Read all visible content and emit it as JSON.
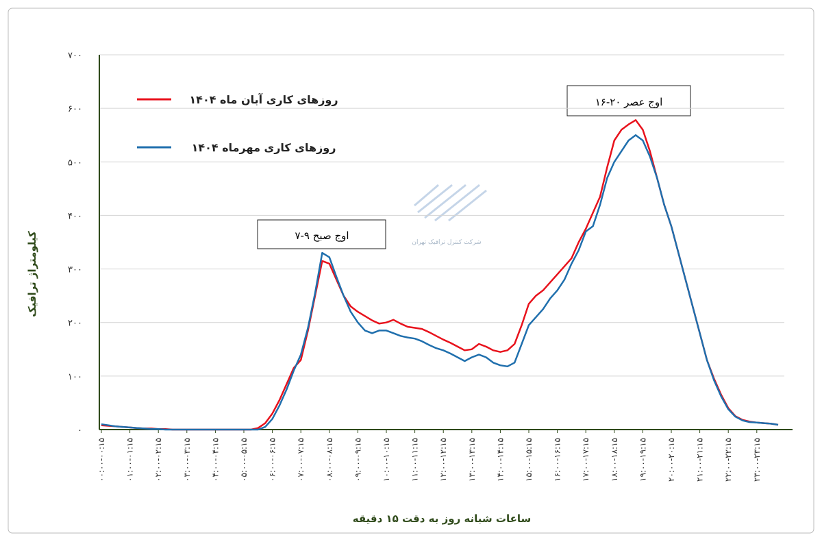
{
  "chart_data": {
    "type": "line",
    "y_label": "کیلومتراژ ترافیک",
    "x_label": "ساعات شبانه روز به دقت ۱۵ دقیقه",
    "watermark": "شرکت کنترل ترافیک تهران",
    "annotations": [
      "اوج صبح ۹-۷",
      "اوج عصر ۲۰-۱۶"
    ],
    "ylim": [
      0,
      700
    ],
    "yticks": [
      {
        "value": 0,
        "label": "۰"
      },
      {
        "value": 100,
        "label": "۱۰۰"
      },
      {
        "value": 200,
        "label": "۲۰۰"
      },
      {
        "value": 300,
        "label": "۳۰۰"
      },
      {
        "value": 400,
        "label": "۴۰۰"
      },
      {
        "value": 500,
        "label": "۵۰۰"
      },
      {
        "value": 600,
        "label": "۶۰۰"
      },
      {
        "value": 700,
        "label": "۷۰۰"
      }
    ],
    "grid": true,
    "categories": [
      "۰۰:۰۰-۰۰:۱۵",
      null,
      null,
      null,
      "۰۱:۰۰-۰۱:۱۵",
      null,
      null,
      null,
      "۰۲:۰۰-۰۲:۱۵",
      null,
      null,
      null,
      "۰۳:۰۰-۰۳:۱۵",
      null,
      null,
      null,
      "۰۴:۰۰-۰۴:۱۵",
      null,
      null,
      null,
      "۰۵:۰۰-۰۵:۱۵",
      null,
      null,
      null,
      "۰۶:۰۰-۰۶:۱۵",
      null,
      null,
      null,
      "۰۷:۰۰-۰۷:۱۵",
      null,
      null,
      null,
      "۰۸:۰۰-۰۸:۱۵",
      null,
      null,
      null,
      "۰۹:۰۰-۰۹:۱۵",
      null,
      null,
      null,
      "۱۰:۰۰-۱۰:۱۵",
      null,
      null,
      null,
      "۱۱:۰۰-۱۱:۱۵",
      null,
      null,
      null,
      "۱۲:۰۰-۱۲:۱۵",
      null,
      null,
      null,
      "۱۳:۰۰-۱۳:۱۵",
      null,
      null,
      null,
      "۱۴:۰۰-۱۴:۱۵",
      null,
      null,
      null,
      "۱۵:۰۰-۱۵:۱۵",
      null,
      null,
      null,
      "۱۶:۰۰-۱۶:۱۵",
      null,
      null,
      null,
      "۱۷:۰۰-۱۷:۱۵",
      null,
      null,
      null,
      "۱۸:۰۰-۱۸:۱۵",
      null,
      null,
      null,
      "۱۹:۰۰-۱۹:۱۵",
      null,
      null,
      null,
      "۲۰:۰۰-۲۰:۱۵",
      null,
      null,
      null,
      "۲۱:۰۰-۲۱:۱۵",
      null,
      null,
      null,
      "۲۲:۰۰-۲۲:۱۵",
      null,
      null,
      null,
      "۲۳:۰۰-۲۳:۱۵",
      null,
      null,
      null
    ],
    "series": [
      {
        "name": "روزهای کاری آبان ماه ۱۴۰۴",
        "color": "#e8121c",
        "values": [
          8,
          7,
          6,
          5,
          4,
          3,
          2,
          2,
          1,
          1,
          0,
          0,
          0,
          0,
          0,
          0,
          0,
          0,
          0,
          0,
          0,
          0,
          3,
          12,
          30,
          55,
          85,
          115,
          130,
          185,
          250,
          315,
          310,
          280,
          250,
          230,
          220,
          212,
          204,
          198,
          200,
          205,
          198,
          192,
          190,
          188,
          182,
          175,
          168,
          162,
          155,
          148,
          150,
          160,
          155,
          148,
          145,
          148,
          160,
          195,
          235,
          250,
          260,
          275,
          290,
          305,
          320,
          350,
          375,
          405,
          435,
          490,
          540,
          560,
          570,
          578,
          560,
          520,
          470,
          420,
          380,
          330,
          280,
          230,
          180,
          130,
          95,
          65,
          40,
          25,
          18,
          15,
          13,
          12,
          11,
          9
        ]
      },
      {
        "name": "روزهای کاری مهرماه ۱۴۰۴",
        "color": "#1f6fad",
        "values": [
          10,
          8,
          6,
          5,
          4,
          3,
          2,
          1,
          1,
          0,
          0,
          0,
          0,
          0,
          0,
          0,
          0,
          0,
          0,
          0,
          0,
          0,
          0,
          5,
          20,
          45,
          75,
          110,
          140,
          190,
          255,
          330,
          322,
          285,
          250,
          220,
          200,
          185,
          180,
          185,
          185,
          180,
          175,
          172,
          170,
          165,
          158,
          152,
          148,
          142,
          135,
          128,
          135,
          140,
          135,
          125,
          120,
          118,
          125,
          160,
          195,
          210,
          225,
          245,
          260,
          280,
          310,
          335,
          370,
          380,
          420,
          470,
          500,
          520,
          540,
          550,
          540,
          510,
          470,
          420,
          380,
          330,
          280,
          230,
          180,
          130,
          92,
          62,
          38,
          24,
          17,
          14,
          13,
          12,
          11,
          9
        ]
      }
    ]
  }
}
